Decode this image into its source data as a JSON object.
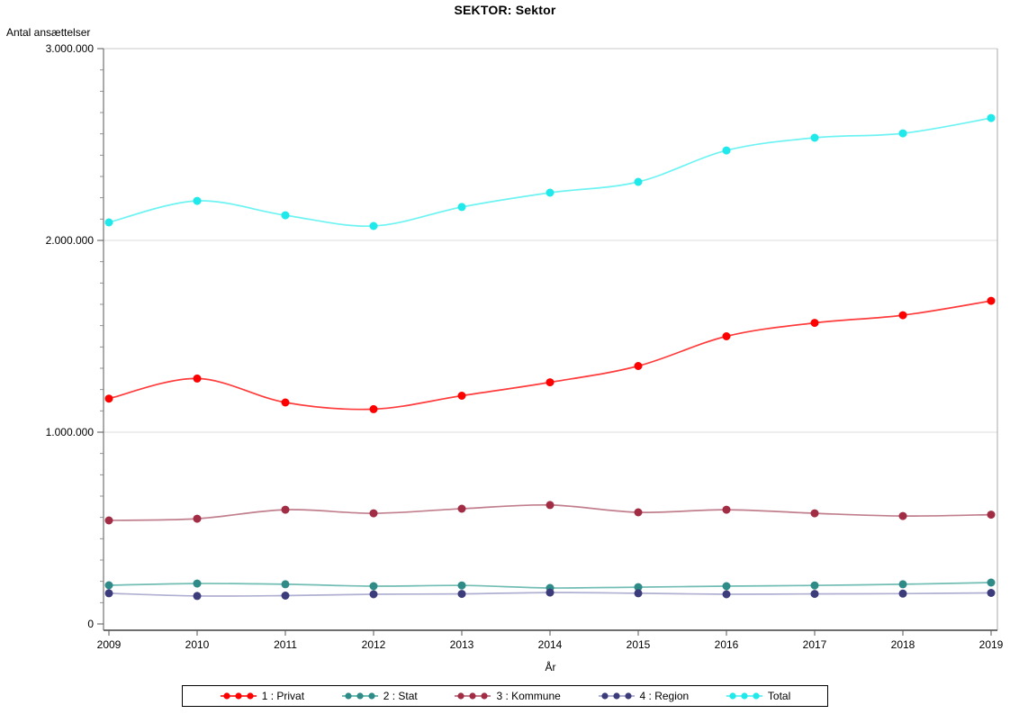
{
  "title": "SEKTOR: Sektor",
  "chart_data": {
    "type": "line",
    "title": "SEKTOR: Sektor",
    "xlabel": "År",
    "ylabel": "Antal ansættelser",
    "x": [
      2009,
      2010,
      2011,
      2012,
      2013,
      2014,
      2015,
      2016,
      2017,
      2018,
      2019
    ],
    "ylim": [
      0,
      3000000
    ],
    "yticks": [
      {
        "value": 0,
        "label": "0"
      },
      {
        "value": 1000000,
        "label": "1.000.000"
      },
      {
        "value": 2000000,
        "label": "2.000.000"
      },
      {
        "value": 3000000,
        "label": "3.000.000"
      }
    ],
    "y_minor_ticks_per_interval": 8,
    "grid": "horizontal-major",
    "legend_position": "bottom",
    "marker": "circle",
    "series": [
      {
        "name": "1 : Privat",
        "marker_color": "#ff0000",
        "line_color": "#ff3b3b",
        "values": [
          1175000,
          1280000,
          1155000,
          1120000,
          1190000,
          1260000,
          1345000,
          1500000,
          1570000,
          1610000,
          1685000
        ]
      },
      {
        "name": "2 : Stat",
        "marker_color": "#2e8b87",
        "line_color": "#72bdb4",
        "values": [
          202000,
          211000,
          207000,
          197000,
          201000,
          188000,
          192000,
          197000,
          201000,
          207000,
          216000
        ]
      },
      {
        "name": "3 : Kommune",
        "marker_color": "#a12c44",
        "line_color": "#c17f8d",
        "values": [
          540000,
          549000,
          596000,
          577000,
          601000,
          620000,
          582000,
          596000,
          577000,
          563000,
          570000
        ]
      },
      {
        "name": "4 : Region",
        "marker_color": "#3c3c7c",
        "line_color": "#b0b0d2",
        "values": [
          160000,
          146000,
          148000,
          155000,
          157000,
          164000,
          160000,
          155000,
          157000,
          158000,
          162000
        ]
      },
      {
        "name": "Total",
        "marker_color": "#1fe9eb",
        "line_color": "#6ef3f3",
        "values": [
          2094000,
          2206000,
          2131000,
          2075000,
          2174000,
          2249000,
          2305000,
          2469000,
          2535000,
          2558000,
          2638000
        ]
      }
    ]
  }
}
